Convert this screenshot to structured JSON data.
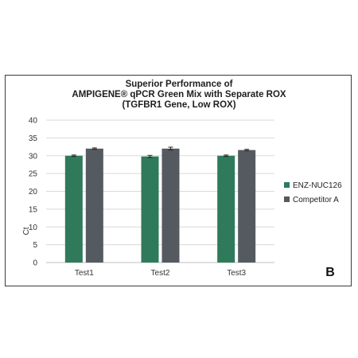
{
  "chart_data": {
    "type": "bar",
    "title_lines": [
      "Superior Performance of",
      "AMPIGENE® qPCR Green Mix with Separate ROX",
      "(TGFBR1 Gene, Low ROX)"
    ],
    "xlabel": "",
    "ylabel": "Ct",
    "categories": [
      "Test1",
      "Test2",
      "Test3"
    ],
    "ylim": [
      0,
      40
    ],
    "yticks": [
      0,
      5,
      10,
      15,
      20,
      25,
      30,
      35,
      40
    ],
    "grid": true,
    "legend_position": "right",
    "series": [
      {
        "name": "ENZ-NUC126",
        "color": "#2f7a5b",
        "values": [
          30.0,
          29.8,
          30.0
        ],
        "errors": [
          0.2,
          0.3,
          0.2
        ]
      },
      {
        "name": "Competitor A",
        "color": "#555a60",
        "values": [
          32.0,
          32.0,
          31.6
        ],
        "errors": [
          0.2,
          0.4,
          0.2
        ]
      }
    ],
    "panel_label": "B"
  }
}
